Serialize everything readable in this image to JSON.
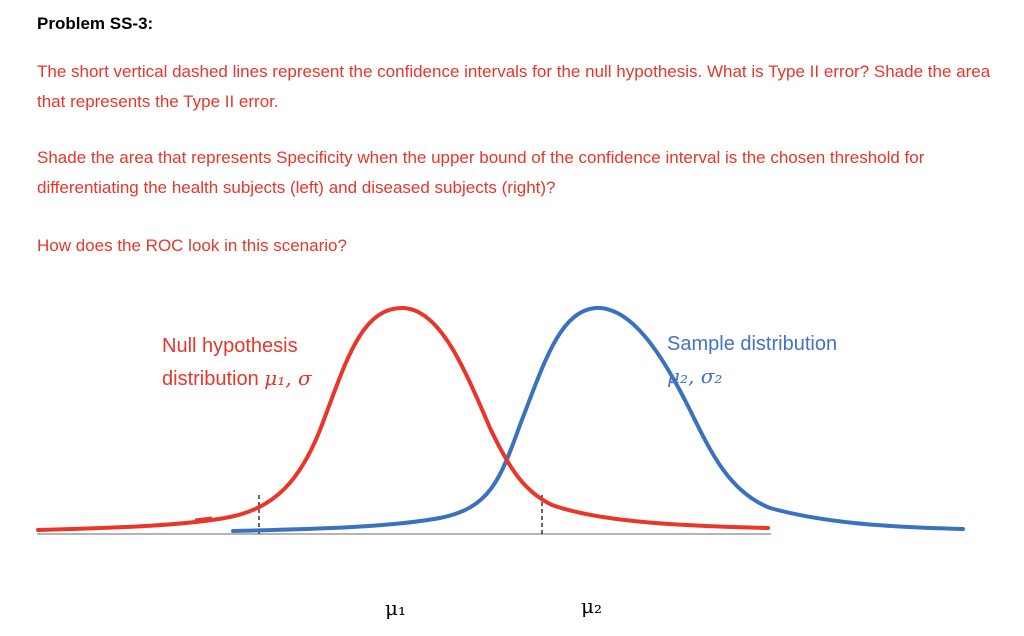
{
  "title": "Problem SS-3:",
  "paragraphs": {
    "p1": "The short vertical dashed lines represent the confidence intervals for the null hypothesis. What is Type II error? Shade the area that represents the Type II error.",
    "p2": "Shade the area that represents Specificity when the upper bound of the confidence interval is the chosen threshold for differentiating the health subjects (left) and diseased subjects (right)?",
    "p3": "How does the ROC look in this scenario?"
  },
  "figure": {
    "null_label_line1": "Null hypothesis",
    "null_label_line2_text": "distribution ",
    "null_label_params": "μ₁, σ",
    "sample_label_line1": "Sample distribution",
    "sample_label_params": "μ₂, σ₂",
    "mu1": "μ₁",
    "mu2": "μ₂",
    "colors": {
      "null": "#e8362a",
      "sample": "#3a72c0",
      "axis": "#888888",
      "dash": "#000000"
    }
  }
}
